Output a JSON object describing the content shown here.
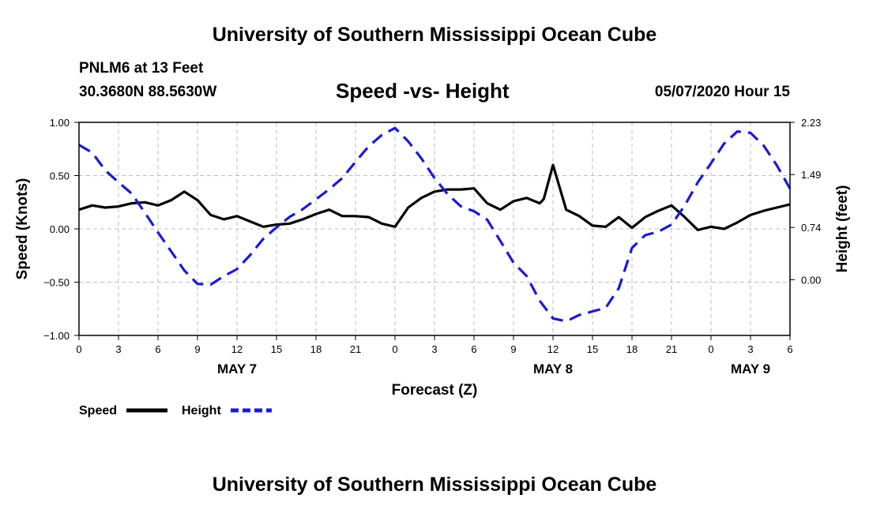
{
  "page": {
    "top_title": "University of Southern Mississippi Ocean Cube",
    "bottom_title": "University of Southern Mississippi Ocean Cube",
    "station": "PNLM6 at 13 Feet",
    "coords": "30.3680N 88.5630W",
    "datetime": "05/07/2020 Hour 15"
  },
  "chart_data": {
    "type": "line",
    "title": "Speed -vs- Height",
    "xlabel": "Forecast (Z)",
    "ylabel_left": "Speed (Knots)",
    "ylabel_right": "Height (feet)",
    "xlim": [
      0,
      54
    ],
    "ylim_left": [
      -1.0,
      1.0
    ],
    "ylim_right": [
      -0.79,
      2.23
    ],
    "x_ticks": [
      0,
      3,
      6,
      9,
      12,
      15,
      18,
      21,
      24,
      27,
      30,
      33,
      36,
      39,
      42,
      45,
      48,
      51,
      54
    ],
    "x_tick_labels": [
      "0",
      "3",
      "6",
      "9",
      "12",
      "15",
      "18",
      "21",
      "0",
      "3",
      "6",
      "9",
      "12",
      "15",
      "18",
      "21",
      "0",
      "3",
      "6"
    ],
    "left_ticks": [
      1.0,
      0.5,
      0.0,
      -0.5,
      -1.0
    ],
    "left_tick_labels": [
      "1.00",
      "0.50",
      "0.00",
      "−0.50",
      "−1.00"
    ],
    "right_ticks": [
      2.23,
      1.49,
      0.74,
      0.0
    ],
    "right_tick_labels": [
      "2.23",
      "1.49",
      "0.74",
      "0.00"
    ],
    "day_labels": [
      {
        "x": 12,
        "label": "MAY 7"
      },
      {
        "x": 36,
        "label": "MAY 8"
      },
      {
        "x": 51,
        "label": "MAY 9"
      }
    ],
    "grid": true,
    "legend_position": "bottom-left",
    "series": [
      {
        "name": "Speed",
        "axis": "left",
        "color": "#000000",
        "style": "solid",
        "x": [
          0,
          1,
          2,
          3,
          4,
          5,
          6,
          7,
          8,
          9,
          10,
          11,
          12,
          13,
          14,
          15,
          16,
          17,
          18,
          19,
          20,
          21,
          22,
          23,
          24,
          25,
          26,
          27,
          28,
          29,
          30,
          31,
          32,
          33,
          34,
          35,
          35.3,
          36,
          37,
          38,
          39,
          40,
          41,
          42,
          43,
          44,
          45,
          46,
          47,
          48,
          49,
          50,
          51,
          52,
          53,
          54
        ],
        "values": [
          0.18,
          0.22,
          0.2,
          0.21,
          0.24,
          0.25,
          0.22,
          0.27,
          0.35,
          0.27,
          0.13,
          0.09,
          0.12,
          0.07,
          0.02,
          0.04,
          0.05,
          0.09,
          0.14,
          0.18,
          0.12,
          0.12,
          0.11,
          0.05,
          0.02,
          0.2,
          0.29,
          0.35,
          0.37,
          0.37,
          0.38,
          0.24,
          0.18,
          0.26,
          0.29,
          0.24,
          0.28,
          0.6,
          0.18,
          0.12,
          0.03,
          0.02,
          0.11,
          0.01,
          0.11,
          0.17,
          0.22,
          0.11,
          -0.01,
          0.02,
          0.0,
          0.06,
          0.13,
          0.17,
          0.2,
          0.23
        ]
      },
      {
        "name": "Height",
        "axis": "right",
        "color": "#1a1ad6",
        "style": "dashed",
        "x": [
          0,
          1,
          2,
          3,
          4,
          5,
          6,
          7,
          8,
          9,
          10,
          11,
          12,
          13,
          14,
          15,
          16,
          17,
          18,
          19,
          20,
          21,
          22,
          23,
          24,
          25,
          26,
          27,
          28,
          29,
          30,
          31,
          32,
          33,
          34,
          35,
          36,
          37,
          38,
          39,
          40,
          41,
          42,
          43,
          44,
          45,
          46,
          47,
          48,
          49,
          50,
          51,
          52,
          53,
          54
        ],
        "values": [
          1.91,
          1.8,
          1.55,
          1.38,
          1.22,
          0.95,
          0.67,
          0.4,
          0.13,
          -0.06,
          -0.07,
          0.05,
          0.15,
          0.35,
          0.58,
          0.74,
          0.89,
          1.0,
          1.14,
          1.28,
          1.44,
          1.67,
          1.89,
          2.05,
          2.15,
          1.96,
          1.72,
          1.44,
          1.21,
          1.04,
          0.97,
          0.85,
          0.55,
          0.24,
          0.05,
          -0.3,
          -0.55,
          -0.59,
          -0.5,
          -0.45,
          -0.4,
          -0.12,
          0.45,
          0.63,
          0.68,
          0.78,
          1.05,
          1.38,
          1.65,
          1.93,
          2.1,
          2.08,
          1.9,
          1.62,
          1.29
        ]
      }
    ]
  },
  "legend": {
    "items": [
      {
        "label": "Speed",
        "color": "#000000",
        "style": "solid"
      },
      {
        "label": "Height",
        "color": "#1a1ad6",
        "style": "dashed"
      }
    ]
  }
}
